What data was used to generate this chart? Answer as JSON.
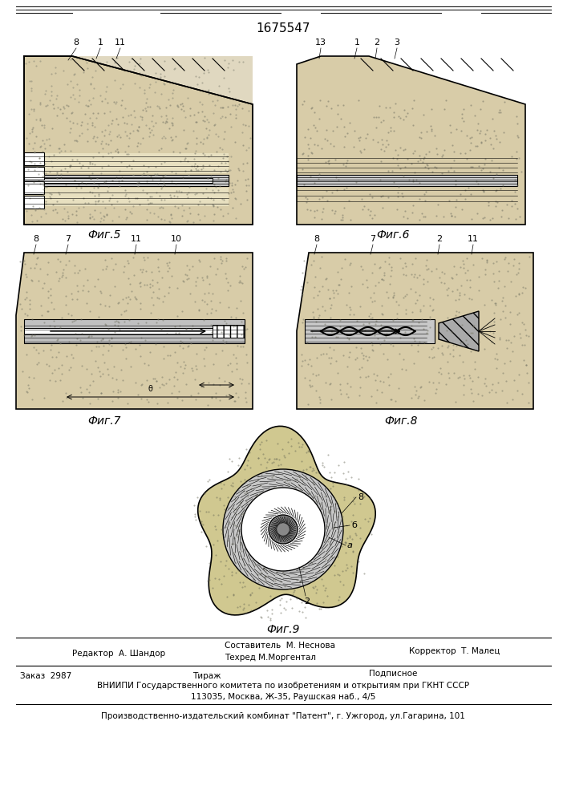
{
  "patent_number": "1675547",
  "bg_color": "#f5f5f0",
  "line_color": "#2a2a2a",
  "fig5_label": "Фиг.5",
  "fig6_label": "Фиг.6",
  "fig7_label": "Фиг.7",
  "fig8_label": "Фиг.8",
  "fig9_label": "Фиг.9",
  "footer_line1_left": "Редактор  А. Шандор",
  "footer_line1_center1": "Составитель  М. Неснова",
  "footer_line1_center2": "Техред М.Моргентал",
  "footer_line1_right": "Корректор  Т. Малец",
  "footer_line2_left": "Заказ  2987",
  "footer_line2_center": "Тираж",
  "footer_line2_right": "Подписное",
  "footer_line3": "ВНИИПИ Государственного комитета по изобретениям и открытиям при ГКНТ СССР",
  "footer_line4": "113035, Москва, Ж-35, Раушская наб., 4/5",
  "footer_line5": "Производственно-издательский комбинат \"Патент\", г. Ужгород, ул.Гагарина, 101",
  "sand_color": "#d4c8a0",
  "rock_color": "#b8a878",
  "pipe_color": "#888888",
  "dark_color": "#333333",
  "hatch_color": "#666666"
}
